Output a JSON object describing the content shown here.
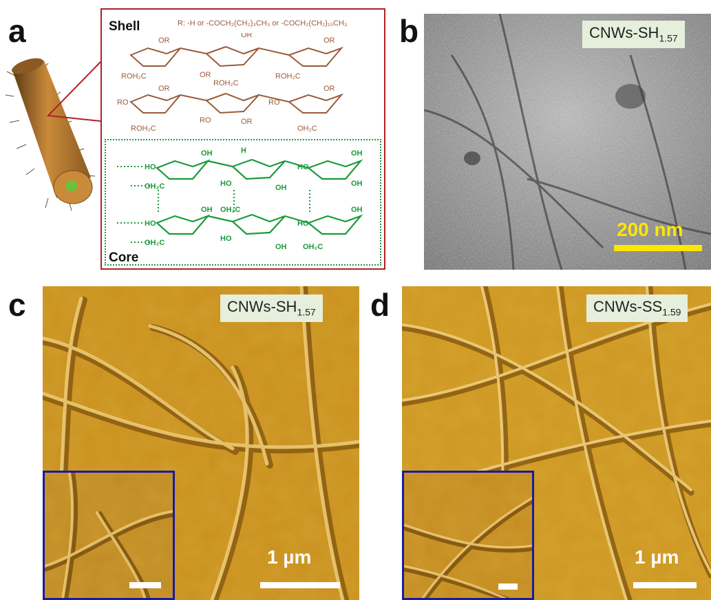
{
  "panels": {
    "a": {
      "letter": "a",
      "shell_label": "Shell",
      "core_label": "Core",
      "r_groups": "R: -H or -COCH₂(CH₂)₃CH₃ or -COCH₂(CH₂)₁₅CH₃",
      "shell_color": "#9a5a3a",
      "core_color": "#1a9a3a",
      "frame_color": "#b01f24"
    },
    "b": {
      "letter": "b",
      "tag_main": "CNWs-SH",
      "tag_sub": "1.57",
      "scale_label": "200 nm",
      "scale_color": "#ffe600",
      "image_kind": "TEM grayscale micrograph"
    },
    "c": {
      "letter": "c",
      "tag_main": "CNWs-SH",
      "tag_sub": "1.57",
      "scale_label": "1 µm",
      "inset_border": "#1a1aa0"
    },
    "d": {
      "letter": "d",
      "tag_main": "CNWs-SS",
      "tag_sub": "1.59",
      "scale_label": "1 µm",
      "inset_border": "#1a1aa0"
    }
  }
}
